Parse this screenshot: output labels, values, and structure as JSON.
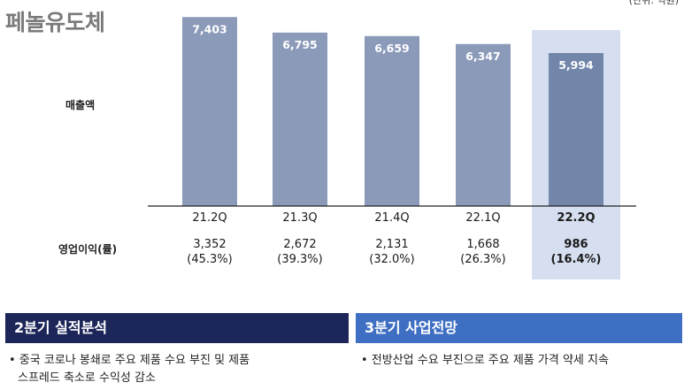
{
  "title": "페놀유도체",
  "unit": "(단위: 억원)",
  "row_labels": {
    "revenue": "매출액",
    "op_income": "영업이익(률)"
  },
  "chart_data": {
    "type": "bar",
    "categories": [
      "21.2Q",
      "21.3Q",
      "21.4Q",
      "22.1Q",
      "22.2Q"
    ],
    "series": [
      {
        "name": "매출액",
        "values": [
          7403,
          6795,
          6659,
          6347,
          5994
        ]
      }
    ],
    "value_labels": [
      "7,403",
      "6,795",
      "6,659",
      "6,347",
      "5,994"
    ],
    "op_income": [
      "3,352",
      "2,672",
      "2,131",
      "1,668",
      "986"
    ],
    "op_margin": [
      "(45.3%)",
      "(39.3%)",
      "(32.0%)",
      "(26.3%)",
      "(16.4%)"
    ],
    "highlight_index": 4,
    "ylim": [
      0,
      8000
    ],
    "colors": {
      "bar": "#8b9ab9",
      "bar_highlight": "#7286aa",
      "highlight_bg": "#d6dff0",
      "axis": "#222222"
    }
  },
  "panels": {
    "left": {
      "title": "2분기 실적분석",
      "color": "#1d2659",
      "bullet": "• 중국 코로나 봉쇄로 주요 제품 수요 부진 및 제품",
      "bullet_cont": "스프레드 축소로 수익성 감소"
    },
    "right": {
      "title": "3분기 사업전망",
      "color": "#3f6fc3",
      "bullet": "• 전방산업 수요 부진으로 주요 제품 가격 약세 지속"
    }
  }
}
